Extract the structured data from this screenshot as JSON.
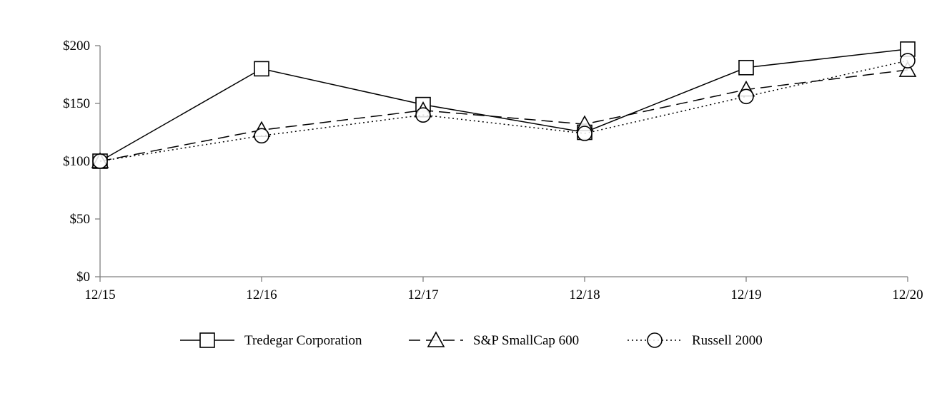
{
  "chart_data": {
    "type": "line",
    "categories": [
      "12/15",
      "12/16",
      "12/17",
      "12/18",
      "12/19",
      "12/20"
    ],
    "y_ticks": [
      "$0",
      "$50",
      "$100",
      "$150",
      "$200"
    ],
    "ylim": [
      0,
      200
    ],
    "grid": false,
    "legend_position": "bottom",
    "series": [
      {
        "name": "Tredegar Corporation",
        "values": [
          100,
          180,
          149,
          125,
          181,
          197
        ],
        "line_style": "solid",
        "marker": "square",
        "color": "#000000"
      },
      {
        "name": "S&P SmallCap 600",
        "values": [
          100,
          127,
          144,
          132,
          162,
          179
        ],
        "line_style": "dashed",
        "marker": "triangle",
        "color": "#000000"
      },
      {
        "name": "Russell 2000",
        "values": [
          100,
          122,
          140,
          124,
          156,
          187
        ],
        "line_style": "dotted",
        "marker": "circle",
        "color": "#000000"
      }
    ]
  }
}
